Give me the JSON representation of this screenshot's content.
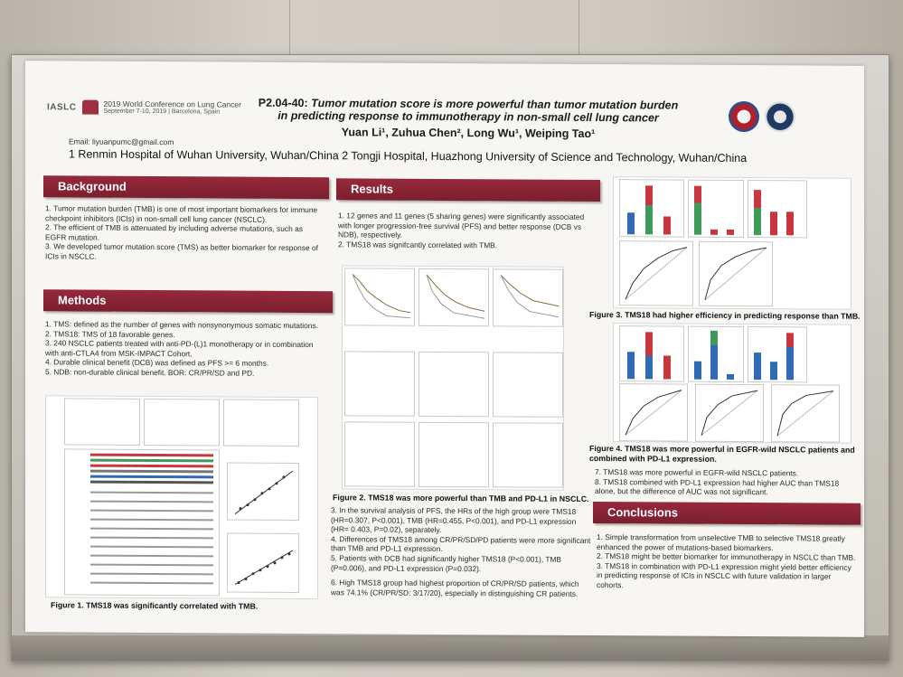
{
  "header": {
    "society": "IASLC",
    "conference_line1": "2019 World Conference on Lung Cancer",
    "conference_line2": "September 7-10, 2019 | Barcelona, Spain",
    "code": "P2.04-40:",
    "title_line1": "Tumor mutation score is more powerful than tumor mutation burden",
    "title_line2": "in predicting response to immunotherapy in non-small cell lung cancer",
    "authors": "Yuan Li¹, Zuhua Chen², Long Wu¹, Weiping Tao¹",
    "email": "Email: liyuanpumc@gmail.com",
    "affiliation": "1 Renmin Hospital of Wuhan University, Wuhan/China   2 Tongji Hospital, Huazhong University of Science and Technology, Wuhan/China"
  },
  "sections": {
    "background": {
      "heading": "Background",
      "items": [
        "1. Tumor mutation burden (TMB) is one of most important biomarkers for immune checkpoint inhibitors (ICIs) in non-small cell lung cancer (NSCLC).",
        "2. The efficient of TMB is attenuated by including adverse mutations, such as EGFR mutation.",
        "3. We developed tumor mutation score (TMS) as better biomarker for response of ICIs in NSCLC."
      ]
    },
    "methods": {
      "heading": "Methods",
      "items": [
        "1. TMS: defined as the number of genes with nonsynonymous somatic mutations.",
        "2. TMS18: TMS of 18 favorable genes.",
        "3. 240 NSCLC patients treated with anti-PD-(L)1 monotherapy or in combination with anti-CTLA4 from MSK-IMPACT Cohort.",
        "4. Durable clinical benefit (DCB) was defined as PFS >= 6 months.",
        "5. NDB: non-durable clinical benefit. BOR: CR/PR/SD and PD."
      ],
      "figure_caption": "Figure 1. TMS18 was significantly correlated with TMB."
    },
    "results": {
      "heading": "Results",
      "items_top": [
        "1. 12 genes and 11 genes (5 sharing genes) were significantly associated with longer progression-free survival (PFS) and better response (DCB vs NDB), respectively.",
        "2. TMS18 was signifcantly correlated with TMB."
      ],
      "figure_caption": "Figure 2. TMS18 was more powerful than TMB and PD-L1 in NSCLC.",
      "items_bottom": [
        "3. In the survival analysis of PFS, the HRs of the high group were TMS18 (HR=0.307, P<0.001), TMB (HR=0.455, P<0.001), and PD-L1 expression (HR= 0.403, P=0.02), separately.",
        "4. Differences of TMS18 among CR/PR/SD/PD patients were more significant than TMB and PD-L1 expression.",
        "5. Patients with DCB had significantly higher TMS18 (P<0.001), TMB (P=0.006), and PD-L1 expression (P=0.032).",
        "6. High TMS18 group had highest proportion of CR/PR/SD patients, which was 74.1% (CR/PR/SD: 3/17/20), especially in distinguishing CR patients."
      ]
    },
    "right": {
      "fig3_caption": "Figure 3. TMS18 had higher efficiency in predicting response than TMB.",
      "fig4_caption": "Figure 4. TMS18 was more powerful in EGFR-wild NSCLC patients and combined with PD-L1 expression.",
      "items": [
        "7. TMS18 was more powerful in EGFR-wild NSCLC patients.",
        "8. TMS18 combined with PD-L1 expression had higher AUC than TMS18 alone, but the difference of AUC was not significant."
      ]
    },
    "conclusions": {
      "heading": "Conclusions",
      "items": [
        "1. Simple transformation from unselective TMB to selective TMS18 greatly enhanced the power of mutations-based biomarkers.",
        "2. TMS18 might be better biomarker for immunotherapy in NSCLC than TMB.",
        "3. TMS18 in combination with PD-L1 expression might yield better efficiency in predicting response of ICIs in NSCLC with future validation in larger cohorts."
      ]
    }
  },
  "colors": {
    "heading": "#8a2435",
    "bar_blue": "#2f6bb3",
    "bar_red": "#c8373f",
    "bar_green": "#3f9a5a"
  }
}
